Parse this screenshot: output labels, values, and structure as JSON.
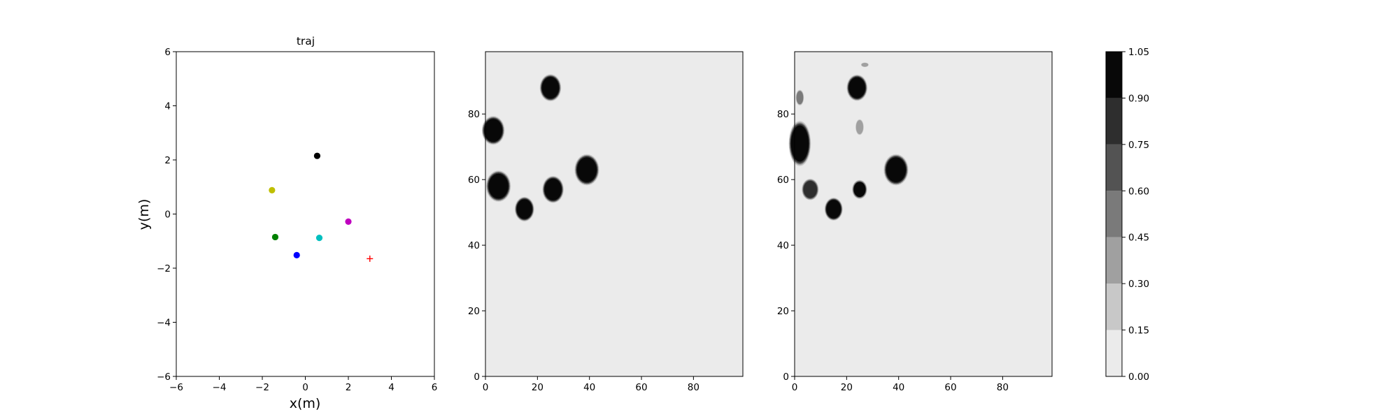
{
  "chart_data": [
    {
      "type": "scatter",
      "title": "traj",
      "xlabel": "x(m)",
      "ylabel": "y(m)",
      "xlim": [
        -6,
        6
      ],
      "ylim": [
        -6,
        6
      ],
      "xticks": [
        "−6",
        "−4",
        "−2",
        "0",
        "2",
        "4",
        "6"
      ],
      "yticks": [
        "−6",
        "−4",
        "−2",
        "0",
        "2",
        "4",
        "6"
      ],
      "grid": false,
      "points": [
        {
          "x": 0.55,
          "y": 2.15,
          "color": "#000000",
          "marker": "circle"
        },
        {
          "x": -1.55,
          "y": 0.88,
          "color": "#bfbf00",
          "marker": "circle"
        },
        {
          "x": -1.4,
          "y": -0.85,
          "color": "#008000",
          "marker": "circle"
        },
        {
          "x": 2.0,
          "y": -0.28,
          "color": "#bf00bf",
          "marker": "circle"
        },
        {
          "x": 0.65,
          "y": -0.88,
          "color": "#00bfbf",
          "marker": "circle"
        },
        {
          "x": -0.4,
          "y": -1.52,
          "color": "#0000ff",
          "marker": "circle"
        },
        {
          "x": 3.0,
          "y": -1.65,
          "color": "#ff0000",
          "marker": "plus"
        }
      ]
    },
    {
      "type": "heatmap",
      "title": "",
      "xlim": [
        0,
        99
      ],
      "ylim": [
        0,
        99
      ],
      "xticks": [
        "0",
        "20",
        "40",
        "60",
        "80"
      ],
      "yticks": [
        "0",
        "20",
        "40",
        "60",
        "80"
      ],
      "background_level": 0.05,
      "blobs": [
        {
          "x": 25,
          "y": 88,
          "r": 3.3,
          "level": 1.0
        },
        {
          "x": 3,
          "y": 75,
          "r": 3.5,
          "level": 1.0
        },
        {
          "x": 5,
          "y": 58,
          "r": 3.8,
          "level": 1.0
        },
        {
          "x": 15,
          "y": 51,
          "r": 3.0,
          "level": 1.0
        },
        {
          "x": 26,
          "y": 57,
          "r": 3.3,
          "level": 1.0
        },
        {
          "x": 39,
          "y": 63,
          "r": 3.8,
          "level": 1.0
        }
      ]
    },
    {
      "type": "heatmap",
      "title": "",
      "xlim": [
        0,
        99
      ],
      "ylim": [
        0,
        99
      ],
      "xticks": [
        "0",
        "20",
        "40",
        "60",
        "80"
      ],
      "yticks": [
        "0",
        "20",
        "40",
        "60",
        "80"
      ],
      "background_level": 0.05,
      "blobs": [
        {
          "x": 24,
          "y": 88,
          "r": 3.2,
          "level": 1.0
        },
        {
          "x": 2,
          "y": 71,
          "r": 3.4,
          "ry": 5.5,
          "level": 1.0
        },
        {
          "x": 6,
          "y": 57,
          "r": 2.6,
          "level": 0.85
        },
        {
          "x": 15,
          "y": 51,
          "r": 2.8,
          "level": 1.0
        },
        {
          "x": 25,
          "y": 57,
          "r": 2.3,
          "level": 0.9
        },
        {
          "x": 39,
          "y": 63,
          "r": 3.8,
          "level": 1.0
        },
        {
          "x": 2,
          "y": 85,
          "r": 1.3,
          "ry": 2.0,
          "level": 0.45
        },
        {
          "x": 25,
          "y": 76,
          "r": 1.3,
          "ry": 2.0,
          "level": 0.4
        },
        {
          "x": 27,
          "y": 95,
          "r": 1.3,
          "ry": 0.6,
          "level": 0.3
        }
      ]
    }
  ],
  "colorbar": {
    "ticks": [
      "0.00",
      "0.15",
      "0.30",
      "0.45",
      "0.60",
      "0.75",
      "0.90",
      "1.05"
    ],
    "levels": [
      0,
      0.15,
      0.3,
      0.45,
      0.6,
      0.75,
      0.9,
      1.05
    ],
    "colors": [
      "#ebebeb",
      "#c8c8c8",
      "#a0a0a0",
      "#7a7a7a",
      "#535353",
      "#2e2e2e",
      "#080808"
    ]
  }
}
